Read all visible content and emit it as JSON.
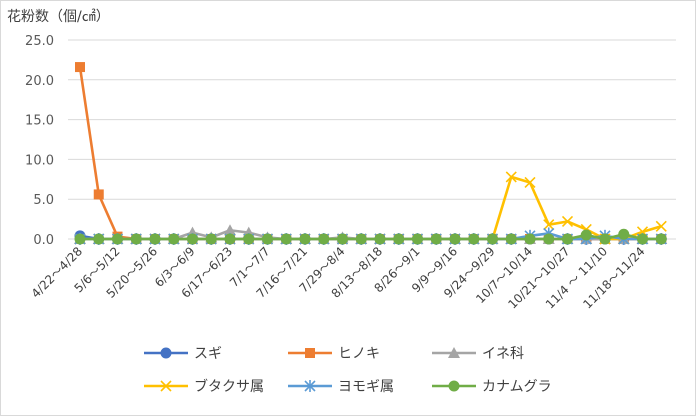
{
  "chart_data": {
    "type": "line",
    "ylabel": "花粉数（個/㎠）",
    "ylim": [
      0,
      25
    ],
    "yticks": [
      "25.0",
      "20.0",
      "15.0",
      "10.0",
      "5.0",
      "0.0"
    ],
    "grid": true,
    "legend_position": "bottom",
    "x_labels": [
      "4/22～4/28",
      "5/6～5/12",
      "5/20～5/26",
      "6/3～6/9",
      "6/17～6/23",
      "7/1～7/7",
      "7/16～7/21",
      "7/29～8/4",
      "8/13～8/18",
      "8/26～9/1",
      "9/9～9/16",
      "9/24～9/29",
      "10/7～10/14",
      "10/21～10/27",
      "11/4 ～ 11/10",
      "11/18～11/24"
    ],
    "num_points": 32,
    "series": [
      {
        "name": "スギ",
        "color": "#4472c4",
        "marker": "circle",
        "values": [
          0.4,
          0,
          0,
          0,
          0,
          0,
          0,
          0,
          0,
          0,
          0,
          0,
          0,
          0,
          0,
          0,
          0,
          0,
          0,
          0,
          0,
          0,
          0,
          0,
          0,
          0,
          0,
          0,
          0,
          0,
          0,
          0
        ]
      },
      {
        "name": "ヒノキ",
        "color": "#ed7d31",
        "marker": "square",
        "values": [
          21.6,
          5.6,
          0.3,
          0,
          0,
          0,
          0,
          0,
          0,
          0,
          0,
          0,
          0,
          0,
          0,
          0,
          0,
          0,
          0,
          0,
          0,
          0,
          0,
          0,
          0,
          0,
          0,
          0,
          0,
          0,
          0,
          0
        ]
      },
      {
        "name": "イネ科",
        "color": "#a5a5a5",
        "marker": "triangle",
        "values": [
          0,
          0,
          0,
          0,
          0,
          0,
          0.8,
          0.2,
          1.1,
          0.8,
          0.2,
          0,
          0,
          0,
          0.2,
          0,
          0,
          0,
          0,
          0,
          0,
          0,
          0,
          0,
          0,
          0,
          0,
          0,
          0,
          0,
          0,
          0
        ]
      },
      {
        "name": "ブタクサ属",
        "color": "#ffc000",
        "marker": "x",
        "values": [
          0,
          0,
          0,
          0,
          0,
          0,
          0,
          0,
          0,
          0,
          0,
          0,
          0,
          0,
          0,
          0,
          0,
          0,
          0,
          0,
          0,
          0,
          0,
          7.8,
          7.1,
          1.8,
          2.2,
          1.2,
          0,
          0,
          0.9,
          1.6
        ]
      },
      {
        "name": "ヨモギ属",
        "color": "#5b9bd5",
        "marker": "asterisk",
        "values": [
          0,
          0,
          0,
          0,
          0,
          0,
          0,
          0,
          0,
          0,
          0,
          0,
          0,
          0,
          0,
          0,
          0,
          0,
          0,
          0,
          0,
          0,
          0,
          0,
          0.4,
          0.7,
          0,
          0,
          0.4,
          0,
          0,
          0
        ]
      },
      {
        "name": "カナムグラ",
        "color": "#70ad47",
        "marker": "circle",
        "values": [
          0,
          0,
          0,
          0,
          0,
          0,
          0,
          0,
          0,
          0,
          0,
          0,
          0,
          0,
          0,
          0,
          0,
          0,
          0,
          0,
          0,
          0,
          0,
          0,
          0,
          0,
          0,
          0.5,
          0,
          0.6,
          0,
          0
        ]
      }
    ]
  }
}
